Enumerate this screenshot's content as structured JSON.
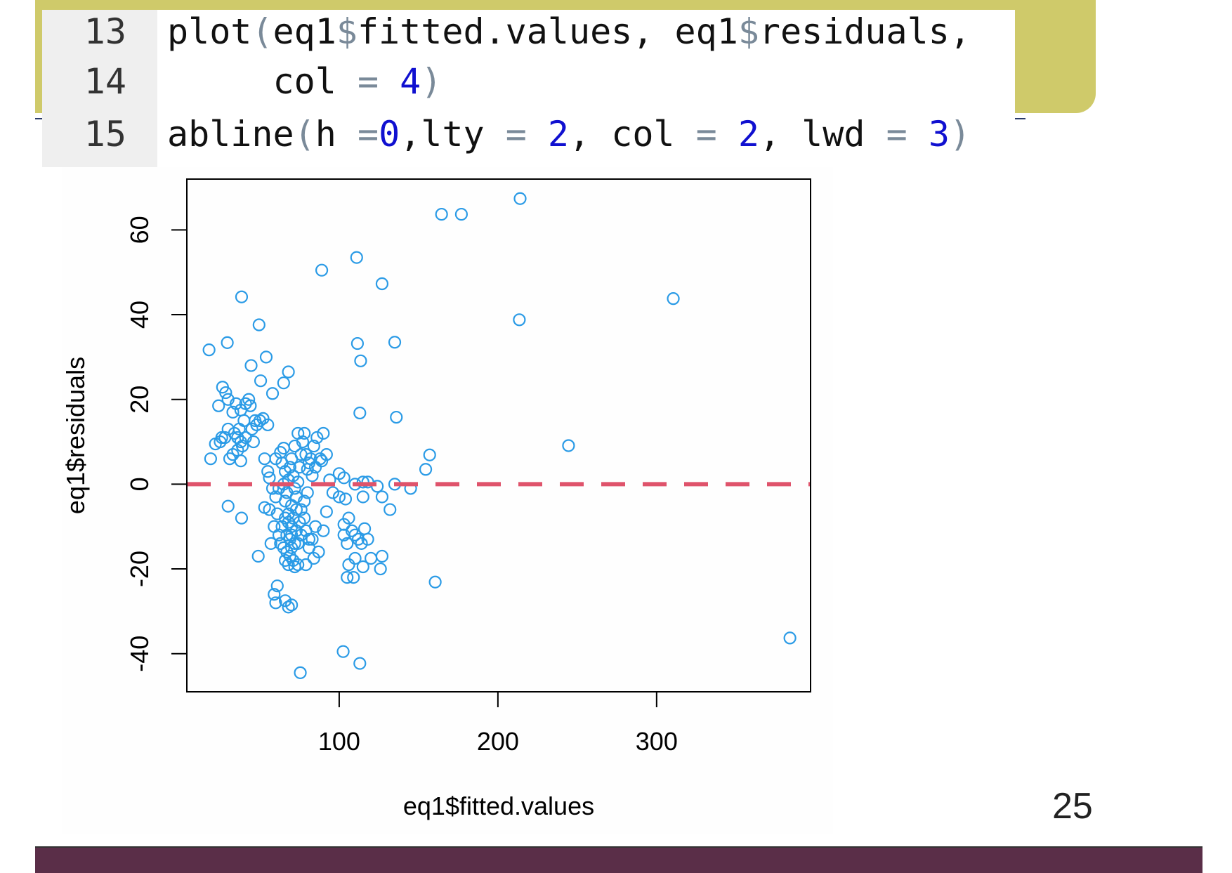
{
  "slide": {
    "page_number": "25",
    "banner_color": "#cfca6a",
    "footer_color": "#5a2e48"
  },
  "code": {
    "lines": [
      {
        "number": "13",
        "tokens": [
          [
            "plot",
            "txt"
          ],
          [
            "(",
            "paren"
          ],
          [
            "eq1",
            "txt"
          ],
          [
            "$",
            "dollar"
          ],
          [
            "fitted.values, eq1",
            "txt"
          ],
          [
            "$",
            "dollar"
          ],
          [
            "residuals,",
            "txt"
          ]
        ]
      },
      {
        "number": "14",
        "tokens": [
          [
            "     col ",
            "txt"
          ],
          [
            "=",
            "op"
          ],
          [
            " ",
            "txt"
          ],
          [
            "4",
            "num"
          ],
          [
            ")",
            "paren"
          ]
        ]
      },
      {
        "number": "15",
        "tokens": [
          [
            "abline",
            "txt"
          ],
          [
            "(",
            "paren"
          ],
          [
            "h ",
            "txt"
          ],
          [
            "=",
            "op"
          ],
          [
            "0",
            "num"
          ],
          [
            ",lty ",
            "txt"
          ],
          [
            "=",
            "op"
          ],
          [
            " ",
            "txt"
          ],
          [
            "2",
            "num"
          ],
          [
            ", col ",
            "txt"
          ],
          [
            "=",
            "op"
          ],
          [
            " ",
            "txt"
          ],
          [
            "2",
            "num"
          ],
          [
            ", lwd ",
            "txt"
          ],
          [
            "=",
            "op"
          ],
          [
            " ",
            "txt"
          ],
          [
            "3",
            "num"
          ],
          [
            ")",
            "paren"
          ]
        ]
      }
    ]
  },
  "chart_data": {
    "type": "scatter",
    "title": "",
    "xlabel": "eq1$fitted.values",
    "ylabel": "eq1$residuals",
    "xlim": [
      4,
      397
    ],
    "ylim": [
      -49,
      72
    ],
    "xticks": [
      100,
      200,
      300
    ],
    "yticks": [
      -40,
      -20,
      0,
      20,
      40,
      60
    ],
    "point_color": "#2b9be6",
    "hline": {
      "y": 0,
      "style": "dashed",
      "color": "#df536b"
    },
    "points": [
      [
        214,
        67.4
      ],
      [
        164.5,
        63.7
      ],
      [
        177,
        63.7
      ],
      [
        111,
        53.5
      ],
      [
        89,
        50.5
      ],
      [
        127,
        47.3
      ],
      [
        310.5,
        43.8
      ],
      [
        38.5,
        44.2
      ],
      [
        213.5,
        38.8
      ],
      [
        49.5,
        37.6
      ],
      [
        18,
        31.7
      ],
      [
        29.5,
        33.4
      ],
      [
        111.5,
        33.2
      ],
      [
        135,
        33.5
      ],
      [
        113.5,
        29.1
      ],
      [
        54,
        30
      ],
      [
        44.5,
        28
      ],
      [
        68,
        26.5
      ],
      [
        65,
        23.9
      ],
      [
        50.5,
        24.4
      ],
      [
        58,
        21.4
      ],
      [
        26.5,
        22.9
      ],
      [
        28.5,
        21.6
      ],
      [
        113,
        16.8
      ],
      [
        136,
        15.8
      ],
      [
        244.5,
        9.1
      ],
      [
        157,
        6.9
      ],
      [
        154.5,
        3.5
      ],
      [
        384,
        -36.3
      ],
      [
        160.5,
        -23.1
      ],
      [
        102.5,
        -39.5
      ],
      [
        113,
        -42.3
      ],
      [
        75.5,
        -44.5
      ],
      [
        38.5,
        -8
      ],
      [
        30,
        -5.2
      ],
      [
        49,
        -17
      ],
      [
        61,
        -24
      ],
      [
        59,
        -26
      ],
      [
        60,
        -28
      ],
      [
        66,
        -27.5
      ],
      [
        68,
        -29
      ],
      [
        70,
        -28.5
      ],
      [
        24,
        18.5
      ],
      [
        30,
        20
      ],
      [
        33,
        17
      ],
      [
        35,
        19
      ],
      [
        38,
        17.5
      ],
      [
        41,
        19
      ],
      [
        43,
        20
      ],
      [
        44,
        18.5
      ],
      [
        40,
        15
      ],
      [
        45,
        13
      ],
      [
        47,
        15
      ],
      [
        48,
        14
      ],
      [
        37,
        13
      ],
      [
        34,
        12
      ],
      [
        36,
        11
      ],
      [
        38,
        10
      ],
      [
        39,
        9
      ],
      [
        41,
        11
      ],
      [
        36,
        8
      ],
      [
        33,
        7
      ],
      [
        31,
        6
      ],
      [
        30,
        13
      ],
      [
        28,
        11
      ],
      [
        25,
        10
      ],
      [
        22,
        9.5
      ],
      [
        19,
        6
      ],
      [
        38,
        5.5
      ],
      [
        46,
        10
      ],
      [
        50,
        15
      ],
      [
        52,
        15.5
      ],
      [
        55,
        14
      ],
      [
        26,
        11
      ],
      [
        53,
        6
      ],
      [
        55,
        3
      ],
      [
        56,
        1.5
      ],
      [
        58,
        -1
      ],
      [
        53,
        -5.5
      ],
      [
        56,
        -6
      ],
      [
        60,
        -3
      ],
      [
        62,
        -1
      ],
      [
        60,
        6
      ],
      [
        63,
        7.5
      ],
      [
        65,
        8.5
      ],
      [
        64,
        5
      ],
      [
        66,
        3
      ],
      [
        65,
        0
      ],
      [
        67,
        -2
      ],
      [
        68,
        1
      ],
      [
        69,
        4
      ],
      [
        70,
        6
      ],
      [
        71,
        2
      ],
      [
        72,
        -1
      ],
      [
        73,
        -3
      ],
      [
        74,
        0.5
      ],
      [
        75,
        4
      ],
      [
        76,
        7
      ],
      [
        77,
        10
      ],
      [
        78,
        12
      ],
      [
        74,
        12
      ],
      [
        72,
        9
      ],
      [
        70,
        -5
      ],
      [
        68,
        -7
      ],
      [
        66,
        -8
      ],
      [
        64,
        -10
      ],
      [
        62,
        -12
      ],
      [
        63,
        -14
      ],
      [
        65,
        -15
      ],
      [
        67,
        -16
      ],
      [
        69,
        -17
      ],
      [
        71,
        -18
      ],
      [
        72,
        -19.5
      ],
      [
        74,
        -19
      ],
      [
        70,
        -12
      ],
      [
        72,
        -14
      ],
      [
        73,
        -11
      ],
      [
        75,
        -9
      ],
      [
        76,
        -6
      ],
      [
        78,
        -4
      ],
      [
        80,
        -2
      ],
      [
        61,
        -7
      ],
      [
        59,
        -10
      ],
      [
        57,
        -14
      ],
      [
        66,
        -4
      ],
      [
        68,
        -9
      ],
      [
        70,
        -10
      ],
      [
        71,
        -8
      ],
      [
        73,
        -6
      ],
      [
        67,
        -12
      ],
      [
        69,
        -13
      ],
      [
        66,
        -18
      ],
      [
        68,
        -19
      ],
      [
        70,
        -15
      ],
      [
        74,
        -14
      ],
      [
        76,
        -12
      ],
      [
        78,
        -8
      ],
      [
        79,
        -11
      ],
      [
        81,
        -13
      ],
      [
        79,
        7
      ],
      [
        81,
        5
      ],
      [
        80,
        3.5
      ],
      [
        82,
        6
      ],
      [
        85,
        4
      ],
      [
        86,
        11
      ],
      [
        90,
        12
      ],
      [
        89,
        5.5
      ],
      [
        92,
        7
      ],
      [
        84,
        9
      ],
      [
        88,
        6
      ],
      [
        83,
        2
      ],
      [
        92,
        -6.5
      ],
      [
        90,
        -11
      ],
      [
        85,
        -10
      ],
      [
        83,
        -13
      ],
      [
        87,
        -16
      ],
      [
        84,
        -17.5
      ],
      [
        81,
        -15
      ],
      [
        79,
        -19
      ],
      [
        100,
        2.5
      ],
      [
        103,
        1.5
      ],
      [
        110,
        0
      ],
      [
        115,
        0.5
      ],
      [
        118,
        0.5
      ],
      [
        124,
        -0.5
      ],
      [
        127,
        -3
      ],
      [
        132,
        -6
      ],
      [
        135,
        0
      ],
      [
        145,
        -1
      ],
      [
        100,
        -3
      ],
      [
        104,
        -3.5
      ],
      [
        115,
        -3
      ],
      [
        103,
        -9.5
      ],
      [
        106,
        -8
      ],
      [
        108,
        -11
      ],
      [
        110,
        -12
      ],
      [
        112,
        -13
      ],
      [
        114,
        -14
      ],
      [
        116,
        -10.5
      ],
      [
        118,
        -13
      ],
      [
        103,
        -12
      ],
      [
        105,
        -14
      ],
      [
        106,
        -19
      ],
      [
        109,
        -22
      ],
      [
        105,
        -22
      ],
      [
        110,
        -17.5
      ],
      [
        115,
        -19.5
      ],
      [
        120,
        -17.5
      ],
      [
        127,
        -17
      ],
      [
        126,
        -20
      ],
      [
        94,
        1
      ],
      [
        96,
        -2
      ]
    ]
  }
}
